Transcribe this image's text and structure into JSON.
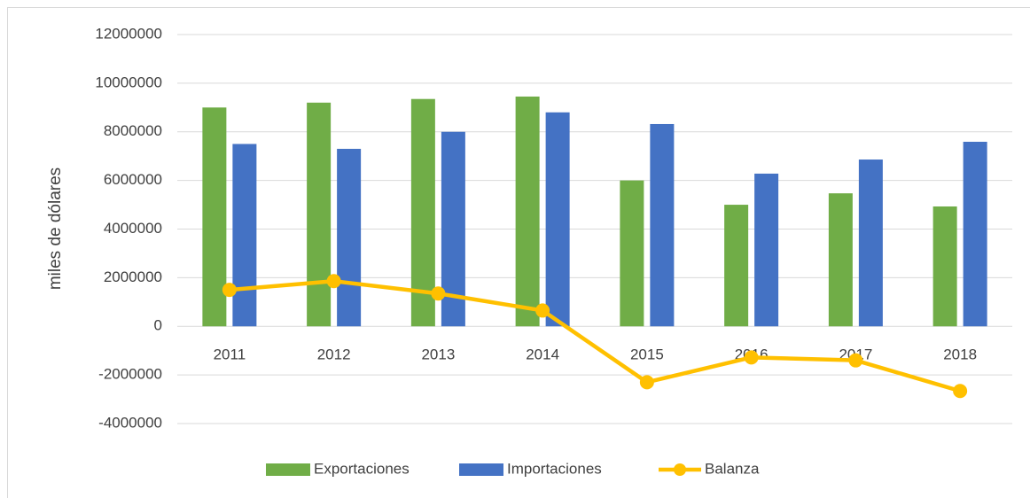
{
  "chart_data": {
    "type": "bar_line",
    "y_label": "miles de dólares",
    "categories": [
      "2011",
      "2012",
      "2013",
      "2014",
      "2015",
      "2016",
      "2017",
      "2018"
    ],
    "series": [
      {
        "name": "Exportaciones",
        "type": "bar",
        "color": "#70ad47",
        "values": [
          9000000,
          9200000,
          9350000,
          9450000,
          6000000,
          5000000,
          5470000,
          4930000
        ]
      },
      {
        "name": "Importaciones",
        "type": "bar",
        "color": "#4472c4",
        "values": [
          7500000,
          7300000,
          8000000,
          8800000,
          8320000,
          6280000,
          6860000,
          7590000
        ]
      },
      {
        "name": "Balanza",
        "type": "line",
        "color": "#ffc000",
        "values": [
          1500000,
          1860000,
          1350000,
          650000,
          -2300000,
          -1280000,
          -1400000,
          -2660000
        ]
      }
    ],
    "ylim": [
      -4000000,
      12000000
    ],
    "yticks": [
      -4000000,
      -2000000,
      0,
      2000000,
      4000000,
      6000000,
      8000000,
      10000000,
      12000000
    ],
    "grid": true,
    "legend": "bottom"
  }
}
